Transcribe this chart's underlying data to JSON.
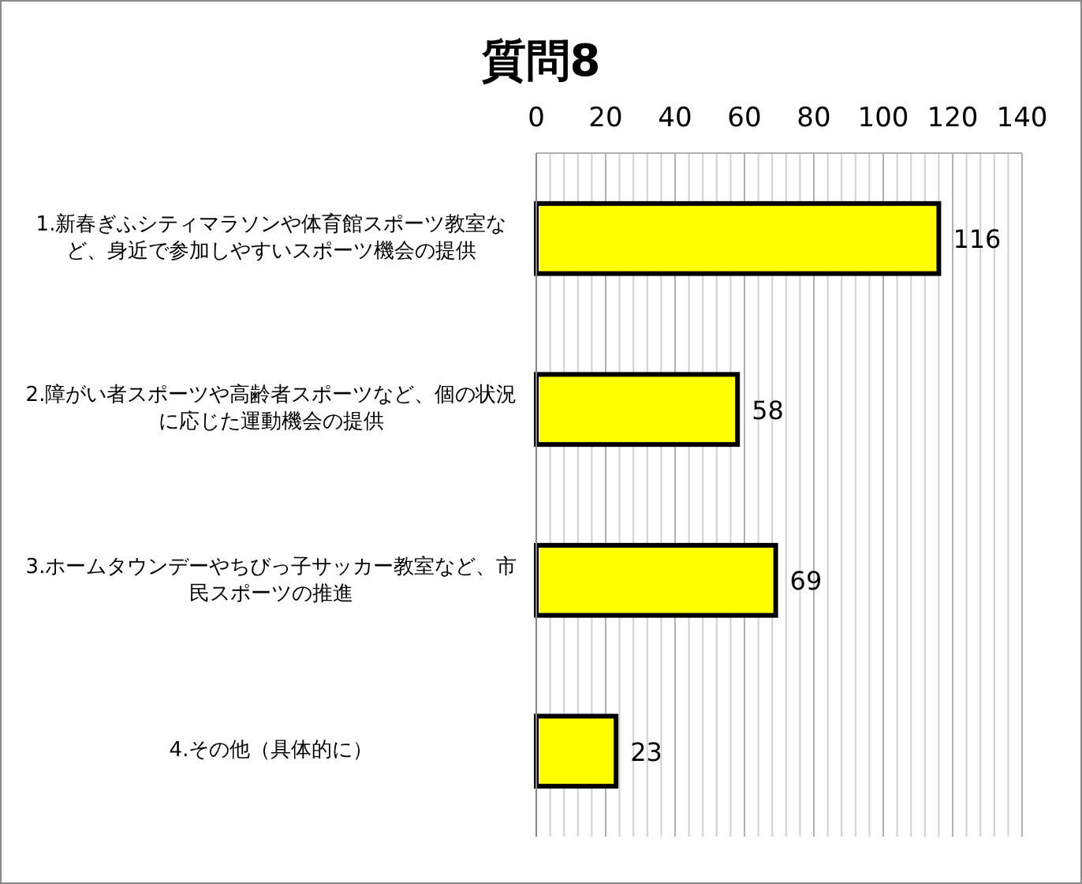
{
  "chart_data": {
    "type": "bar",
    "orientation": "horizontal",
    "title": "質問8",
    "categories": [
      "1.新春ぎふシティマラソンや体育館スポーツ教室など、身近で参加しやすいスポーツ機会の提供",
      "2.障がい者スポーツや高齢者スポーツなど、個の状況に応じた運動機会の提供",
      "3.ホームタウンデーやちびっ子サッカー教室など、市民スポーツの推進",
      "4.その他（具体的に）"
    ],
    "values": [
      116,
      58,
      69,
      23
    ],
    "color": "#ffff00",
    "data_labels": true,
    "xlim": [
      0,
      140
    ],
    "xticks": [
      0,
      20,
      40,
      60,
      80,
      100,
      120,
      140
    ],
    "grid": "x"
  }
}
